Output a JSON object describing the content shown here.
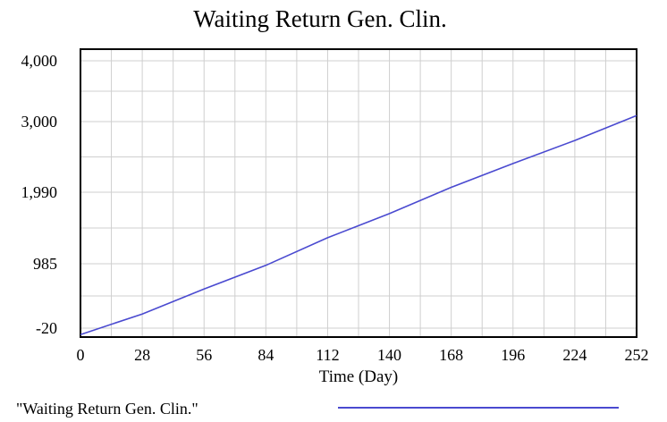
{
  "chart_data": {
    "type": "line",
    "title": "Waiting Return Gen. Clin.",
    "xlabel": "Time (Day)",
    "ylabel": "",
    "x_ticks": [
      "0",
      "28",
      "56",
      "84",
      "112",
      "140",
      "168",
      "196",
      "224",
      "252"
    ],
    "y_ticks": [
      {
        "label": "4,000",
        "value": 4000
      },
      {
        "label": "3,000",
        "value": 3000
      },
      {
        "label": "1,990",
        "value": 1990
      },
      {
        "label": "985",
        "value": 985
      },
      {
        "label": "-20",
        "value": -20
      }
    ],
    "xlim": [
      0,
      252
    ],
    "ylim": [
      -20,
      4000
    ],
    "grid": true,
    "legend_position": "bottom",
    "series": [
      {
        "name": "\"Waiting Return Gen. Clin.\"",
        "color": "#4a4ad0",
        "x": [
          0,
          28,
          56,
          84,
          112,
          140,
          168,
          196,
          224,
          252
        ],
        "values": [
          -120,
          200,
          590,
          960,
          1350,
          1690,
          2060,
          2400,
          2730,
          3100
        ]
      }
    ]
  }
}
